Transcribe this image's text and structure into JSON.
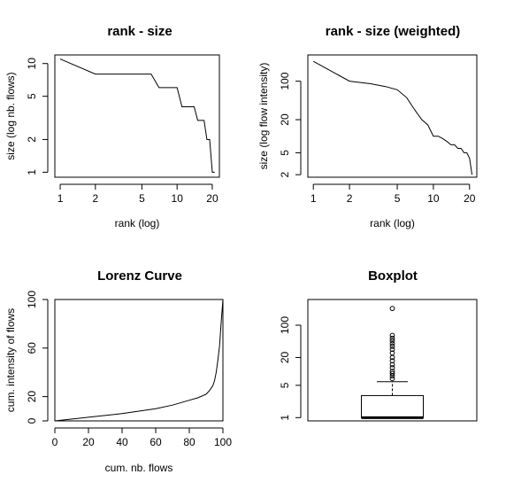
{
  "chart_data": [
    {
      "id": "rank-size",
      "type": "line",
      "title": "rank - size",
      "xlabel": "rank (log)",
      "ylabel": "size (log nb. flows)",
      "xscale": "log",
      "yscale": "log",
      "xlim": [
        0.9,
        23
      ],
      "ylim": [
        0.9,
        12
      ],
      "xticks": [
        1,
        2,
        5,
        10,
        20
      ],
      "yticks": [
        1,
        2,
        5,
        10
      ],
      "x": [
        1,
        2,
        3,
        4,
        5,
        6,
        7,
        8,
        9,
        10,
        11,
        12,
        13,
        14,
        15,
        16,
        17,
        18,
        19,
        20,
        21
      ],
      "y": [
        11,
        8,
        8,
        8,
        8,
        8,
        6,
        6,
        6,
        6,
        4,
        4,
        4,
        4,
        3,
        3,
        3,
        2,
        2,
        1,
        1
      ]
    },
    {
      "id": "rank-size-weighted",
      "type": "line",
      "title": "rank - size (weighted)",
      "xlabel": "rank (log)",
      "ylabel": "size (log flow intensity)",
      "xscale": "log",
      "yscale": "log",
      "xlim": [
        0.9,
        23
      ],
      "ylim": [
        1.8,
        300
      ],
      "xticks": [
        1,
        2,
        5,
        10,
        20
      ],
      "yticks": [
        2,
        5,
        20,
        100
      ],
      "x": [
        1,
        2,
        3,
        4,
        5,
        6,
        7,
        8,
        9,
        10,
        11,
        12,
        13,
        14,
        15,
        16,
        17,
        18,
        19,
        20,
        21
      ],
      "y": [
        230,
        100,
        90,
        80,
        70,
        50,
        30,
        20,
        16,
        10,
        10,
        9,
        8,
        7,
        7,
        6,
        6,
        5,
        5,
        4,
        2
      ]
    },
    {
      "id": "lorenz",
      "type": "line",
      "title": "Lorenz Curve",
      "xlabel": "cum. nb. flows",
      "ylabel": "cum. intensity of flows",
      "xlim": [
        0,
        100
      ],
      "ylim": [
        0,
        100
      ],
      "xticks": [
        0,
        20,
        40,
        60,
        80,
        100
      ],
      "yticks": [
        0,
        20,
        60,
        100
      ],
      "x": [
        0,
        20,
        40,
        60,
        70,
        80,
        85,
        90,
        92,
        94,
        95,
        96,
        97,
        98,
        99,
        100
      ],
      "y": [
        0,
        3,
        6,
        10,
        13,
        17,
        19,
        22,
        25,
        29,
        33,
        40,
        50,
        62,
        82,
        100
      ]
    },
    {
      "id": "boxplot",
      "type": "boxplot",
      "title": "Boxplot",
      "yscale": "log",
      "ylim": [
        0.85,
        360
      ],
      "yticks": [
        1,
        5,
        20,
        100
      ],
      "box": {
        "min": 1,
        "q1": 1,
        "median": 1,
        "q3": 3,
        "whisker_high": 6
      },
      "outliers": [
        7,
        8,
        9,
        10,
        12,
        14,
        17,
        20,
        25,
        30,
        35,
        40,
        46,
        52,
        60,
        230
      ]
    }
  ]
}
